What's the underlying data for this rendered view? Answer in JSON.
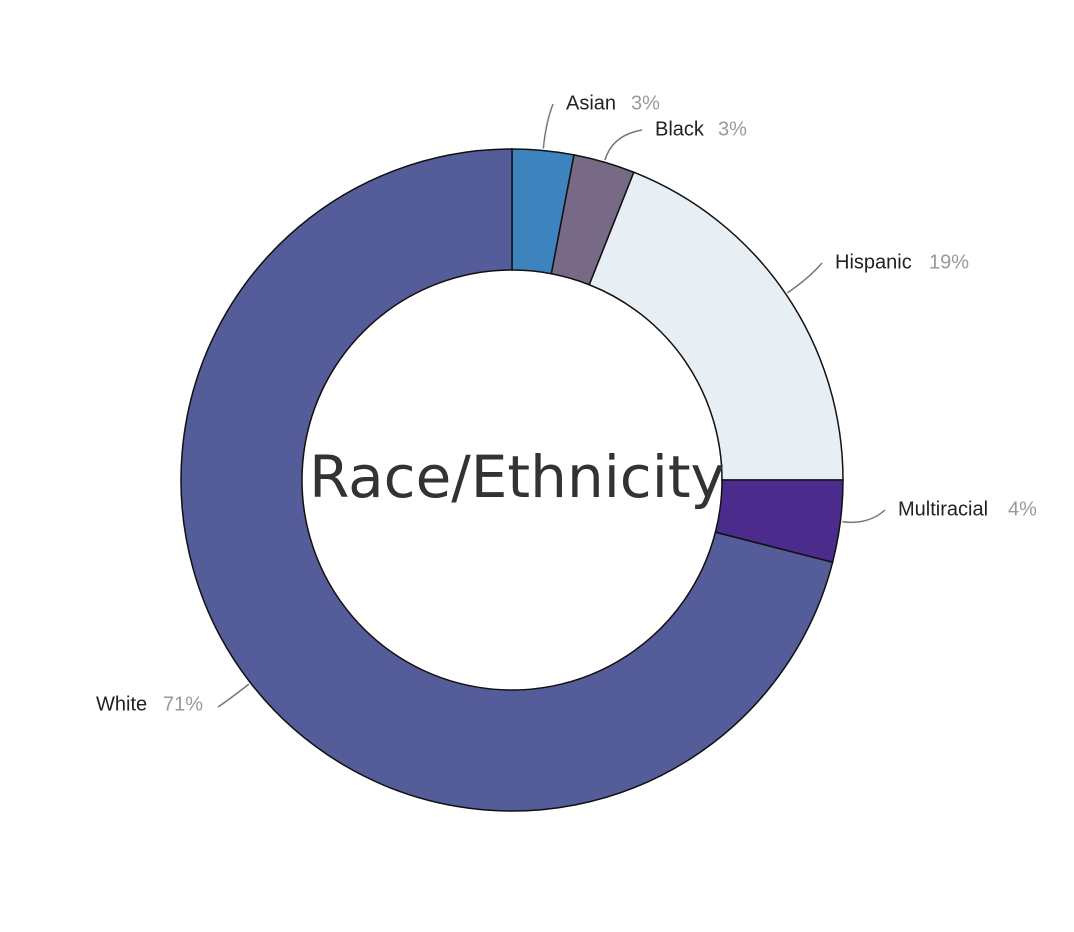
{
  "chart_data": {
    "type": "pie",
    "title": "Race/Ethnicity",
    "categories": [
      "Asian",
      "Black",
      "Hispanic",
      "Multiracial",
      "White"
    ],
    "values": [
      3,
      3,
      19,
      4,
      71
    ],
    "labels": [
      "3%",
      "3%",
      "19%",
      "4%",
      "71%"
    ],
    "colors": [
      "#3d84be",
      "#786a87",
      "#e7eff5",
      "#4b2c8c",
      "#545c99"
    ],
    "legend": "none",
    "donut": true
  }
}
